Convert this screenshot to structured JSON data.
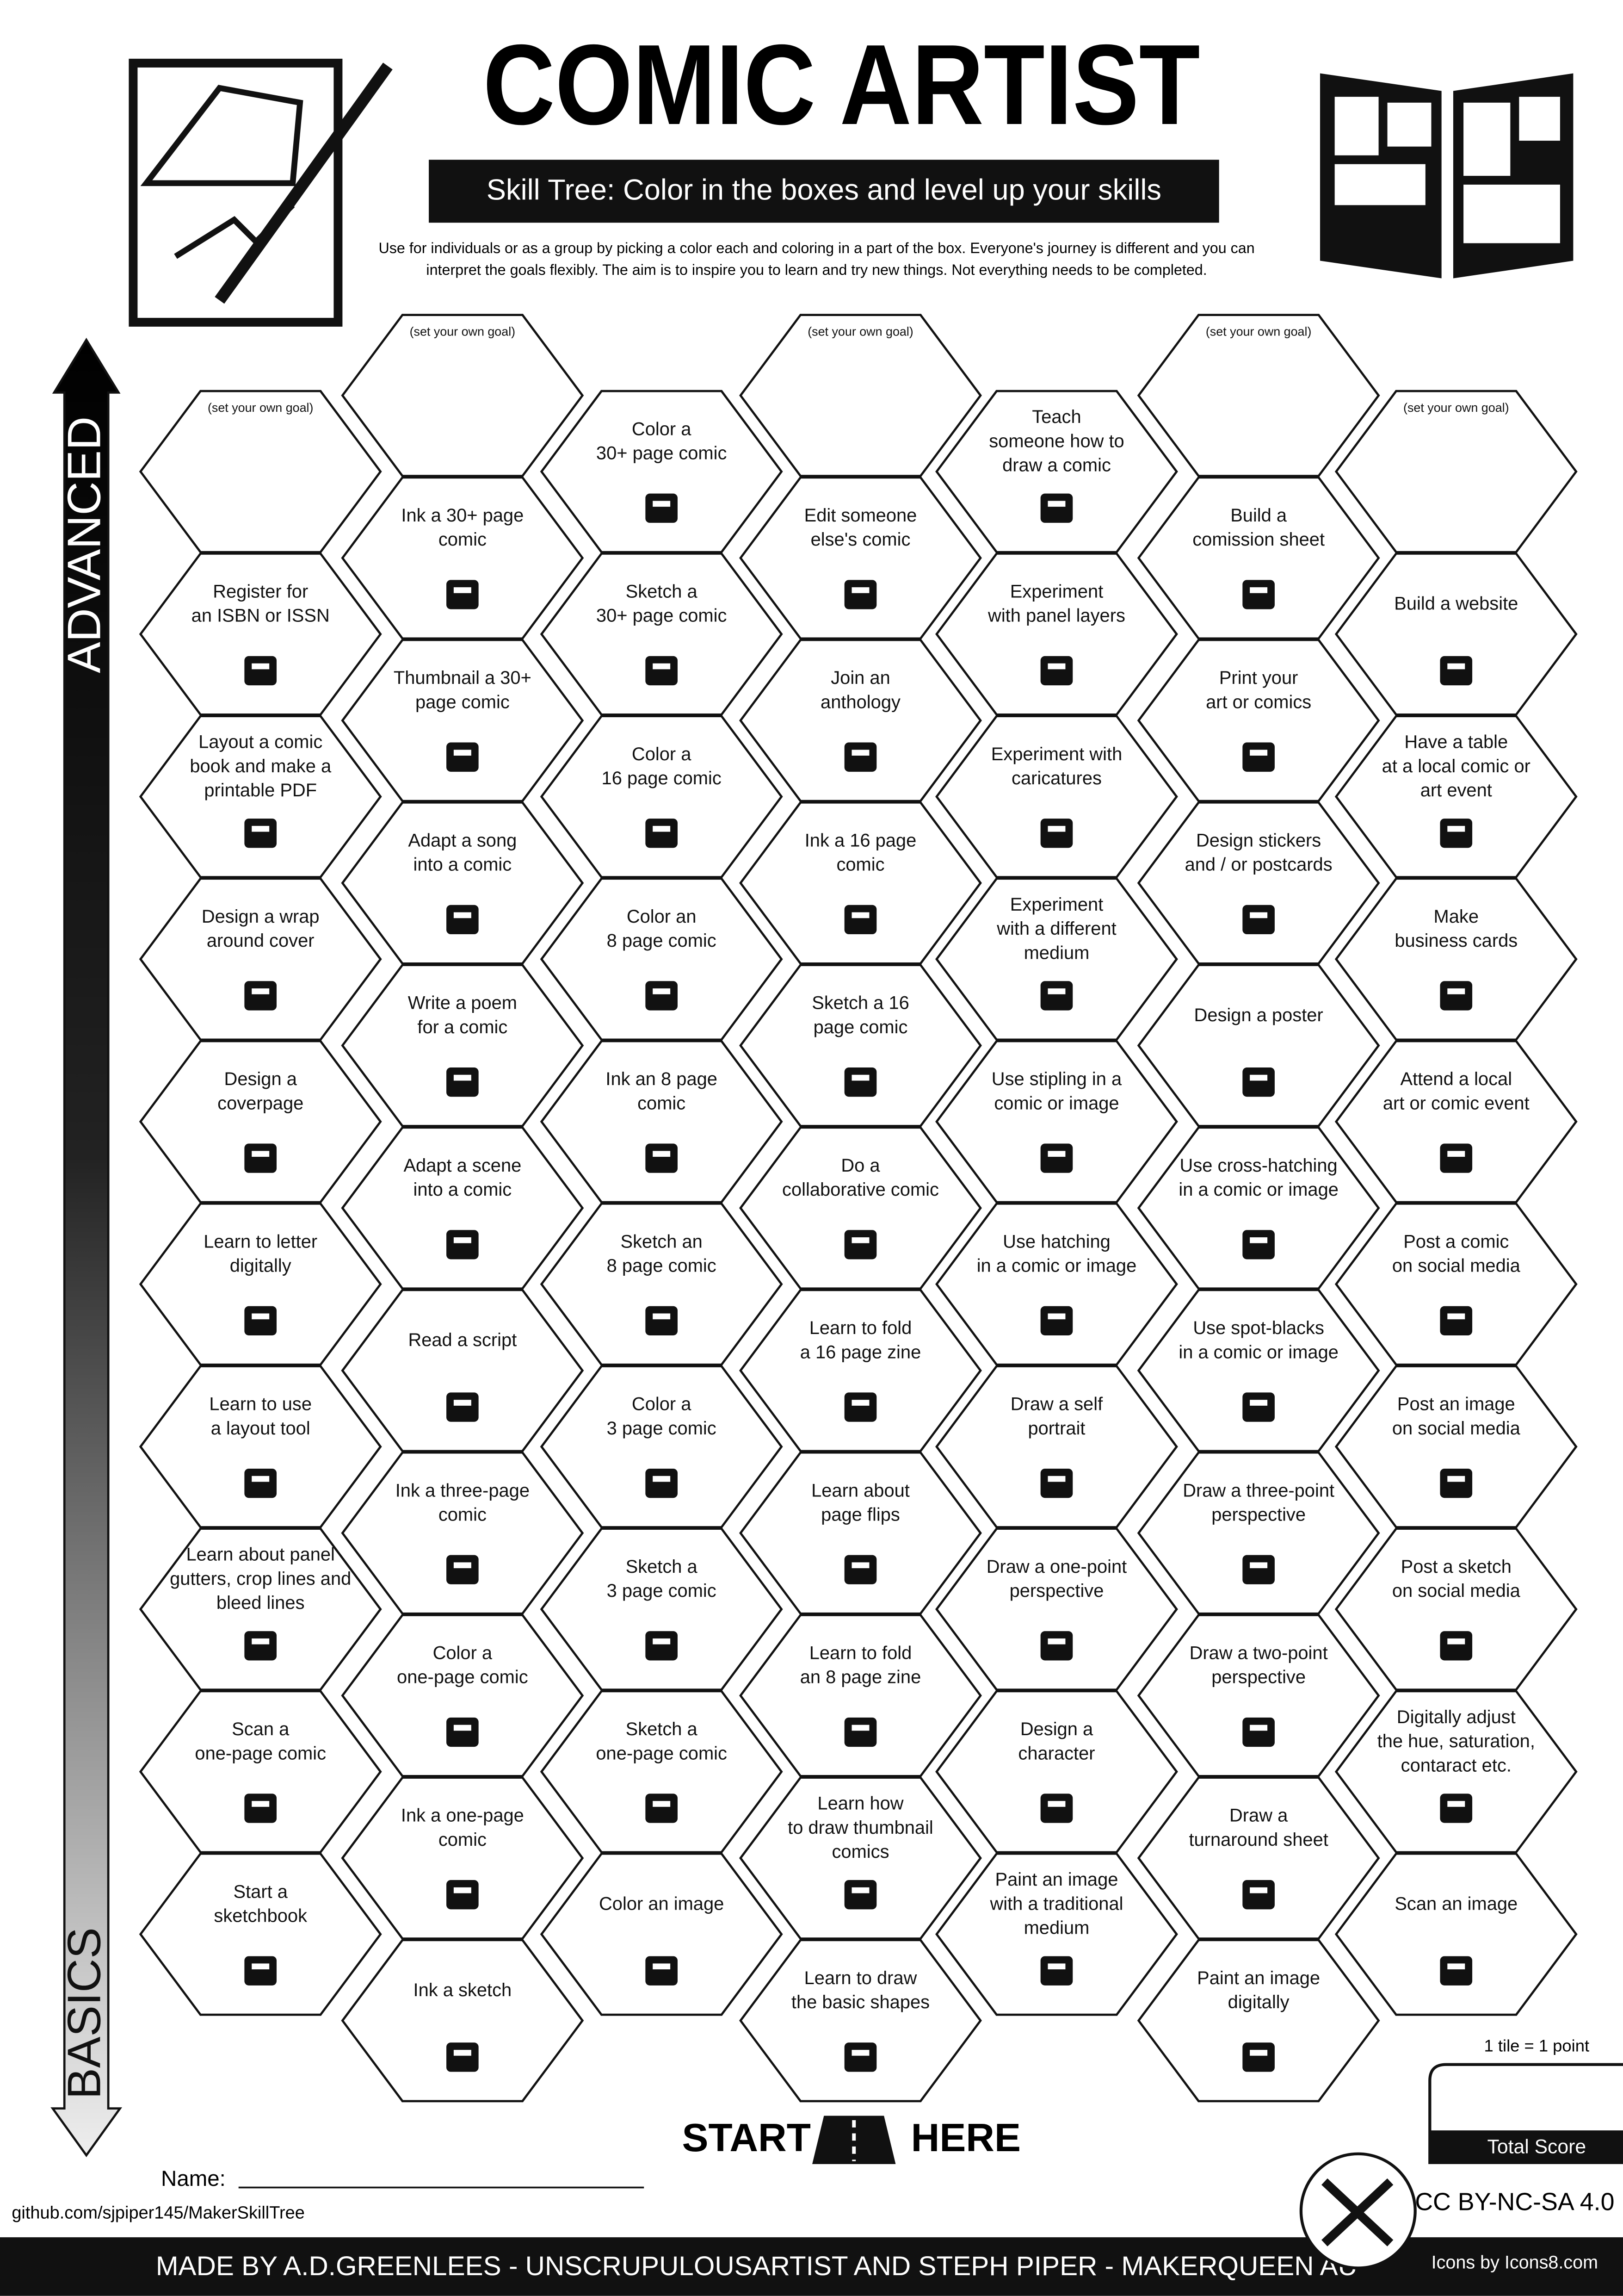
{
  "header": {
    "title": "COMIC ARTIST",
    "subtitle": "Skill Tree:  Color in the boxes and level up your skills",
    "intro": [
      "Use for individuals or as a group by picking a color each and coloring in a part of the box.  Everyone's journey is different and you can",
      "interpret the goals flexibly.  The aim is to inspire you to learn and try new things. Not everything needs to be completed."
    ]
  },
  "axis": {
    "top": "ADVANCED",
    "bottom": "BASICS"
  },
  "columns": [
    [
      {
        "note": "(set your own goal)"
      },
      {
        "label": [
          "Register for",
          "an ISBN or ISSN"
        ]
      },
      {
        "label": [
          "Layout a comic",
          "book and make a",
          "printable PDF"
        ]
      },
      {
        "label": [
          "Design a wrap",
          "around cover"
        ]
      },
      {
        "label": [
          "Design a",
          "coverpage"
        ]
      },
      {
        "label": [
          "Learn to letter",
          "digitally"
        ]
      },
      {
        "label": [
          "Learn to use",
          "a layout tool"
        ]
      },
      {
        "label": [
          "Learn about panel",
          "gutters, crop lines and",
          "bleed lines"
        ]
      },
      {
        "label": [
          "Scan a",
          "one-page comic"
        ]
      },
      {
        "label": [
          "Start a",
          "sketchbook"
        ]
      }
    ],
    [
      {
        "note": "(set your own goal)"
      },
      {
        "label": [
          "Ink a 30+ page",
          "comic"
        ]
      },
      {
        "label": [
          "Thumbnail a 30+",
          "page comic"
        ]
      },
      {
        "label": [
          "Adapt a song",
          "into a comic"
        ]
      },
      {
        "label": [
          "Write a poem",
          "for a comic"
        ]
      },
      {
        "label": [
          "Adapt a scene",
          "into a comic"
        ]
      },
      {
        "label": [
          "Read a script"
        ]
      },
      {
        "label": [
          "Ink a three-page",
          "comic"
        ]
      },
      {
        "label": [
          "Color a",
          "one-page comic"
        ]
      },
      {
        "label": [
          "Ink a one-page",
          "comic"
        ]
      },
      {
        "label": [
          "Ink a sketch"
        ]
      }
    ],
    [
      {
        "label": [
          "Color a",
          "30+ page comic"
        ]
      },
      {
        "label": [
          "Sketch a",
          "30+ page comic"
        ]
      },
      {
        "label": [
          "Color a",
          "16 page comic"
        ]
      },
      {
        "label": [
          "Color an",
          "8 page comic"
        ]
      },
      {
        "label": [
          "Ink an 8 page",
          "comic"
        ]
      },
      {
        "label": [
          "Sketch an",
          "8 page comic"
        ]
      },
      {
        "label": [
          "Color a",
          "3 page comic"
        ]
      },
      {
        "label": [
          "Sketch a",
          "3 page comic"
        ]
      },
      {
        "label": [
          "Sketch a",
          "one-page comic"
        ]
      },
      {
        "label": [
          "Color an image"
        ]
      }
    ],
    [
      {
        "note": "(set your own goal)"
      },
      {
        "label": [
          "Edit someone",
          "else's comic"
        ]
      },
      {
        "label": [
          "Join an",
          "anthology"
        ]
      },
      {
        "label": [
          "Ink a 16 page",
          "comic"
        ]
      },
      {
        "label": [
          "Sketch a 16",
          "page comic"
        ]
      },
      {
        "label": [
          "Do a",
          "collaborative comic"
        ]
      },
      {
        "label": [
          "Learn to fold",
          "a 16 page zine"
        ]
      },
      {
        "label": [
          "Learn about",
          "page flips"
        ]
      },
      {
        "label": [
          "Learn to fold",
          "an 8 page zine"
        ]
      },
      {
        "label": [
          "Learn how",
          "to draw thumbnail",
          "comics"
        ]
      },
      {
        "label": [
          "Learn to draw",
          "the basic shapes"
        ]
      }
    ],
    [
      {
        "label": [
          "Teach",
          "someone how to",
          "draw a comic"
        ]
      },
      {
        "label": [
          "Experiment",
          "with panel layers"
        ]
      },
      {
        "label": [
          "Experiment with",
          "caricatures"
        ]
      },
      {
        "label": [
          "Experiment",
          "with a different",
          "medium"
        ]
      },
      {
        "label": [
          "Use stipling in a",
          "comic or image"
        ]
      },
      {
        "label": [
          "Use hatching",
          "in a comic or image"
        ]
      },
      {
        "label": [
          "Draw a self",
          "portrait"
        ]
      },
      {
        "label": [
          "Draw a one-point",
          "perspective"
        ]
      },
      {
        "label": [
          "Design a",
          "character"
        ]
      },
      {
        "label": [
          "Paint an image",
          "with a traditional",
          "medium"
        ]
      }
    ],
    [
      {
        "note": "(set your own goal)"
      },
      {
        "label": [
          "Build a",
          "comission sheet"
        ]
      },
      {
        "label": [
          "Print your",
          "art or comics"
        ]
      },
      {
        "label": [
          "Design stickers",
          "and / or postcards"
        ]
      },
      {
        "label": [
          "Design a poster"
        ]
      },
      {
        "label": [
          "Use cross-hatching",
          "in a comic or image"
        ]
      },
      {
        "label": [
          "Use spot-blacks",
          "in a comic or image"
        ]
      },
      {
        "label": [
          "Draw a three-point",
          "perspective"
        ]
      },
      {
        "label": [
          "Draw a two-point",
          "perspective"
        ]
      },
      {
        "label": [
          "Draw a",
          "turnaround sheet"
        ]
      },
      {
        "label": [
          "Paint an image",
          "digitally"
        ]
      }
    ],
    [
      {
        "note": "(set your own goal)"
      },
      {
        "label": [
          "Build a website"
        ]
      },
      {
        "label": [
          "Have a table",
          "at a local comic or",
          "art event"
        ]
      },
      {
        "label": [
          "Make",
          "business cards"
        ]
      },
      {
        "label": [
          "Attend a local",
          "art or comic event"
        ]
      },
      {
        "label": [
          "Post a comic",
          "on social media"
        ]
      },
      {
        "label": [
          "Post an image",
          "on social media"
        ]
      },
      {
        "label": [
          "Post a sketch",
          "on social media"
        ]
      },
      {
        "label": [
          "Digitally adjust",
          "the hue, saturation,",
          "contaract etc."
        ]
      },
      {
        "label": [
          "Scan an image"
        ]
      }
    ]
  ],
  "start": [
    "START",
    "HERE"
  ],
  "name_label": "Name:",
  "repo": "github.com/sjpiper145/MakerSkillTree",
  "score": {
    "note": "1 tile = 1 point",
    "label": "Total Score"
  },
  "license": "CC BY-NC-SA 4.0",
  "icons_credit": "Icons by Icons8.com",
  "footer": "MADE BY A.D.GREENLEES - UNSCRUPULOUSARTIST AND STEPH PIPER  -  MAKERQUEEN AU"
}
